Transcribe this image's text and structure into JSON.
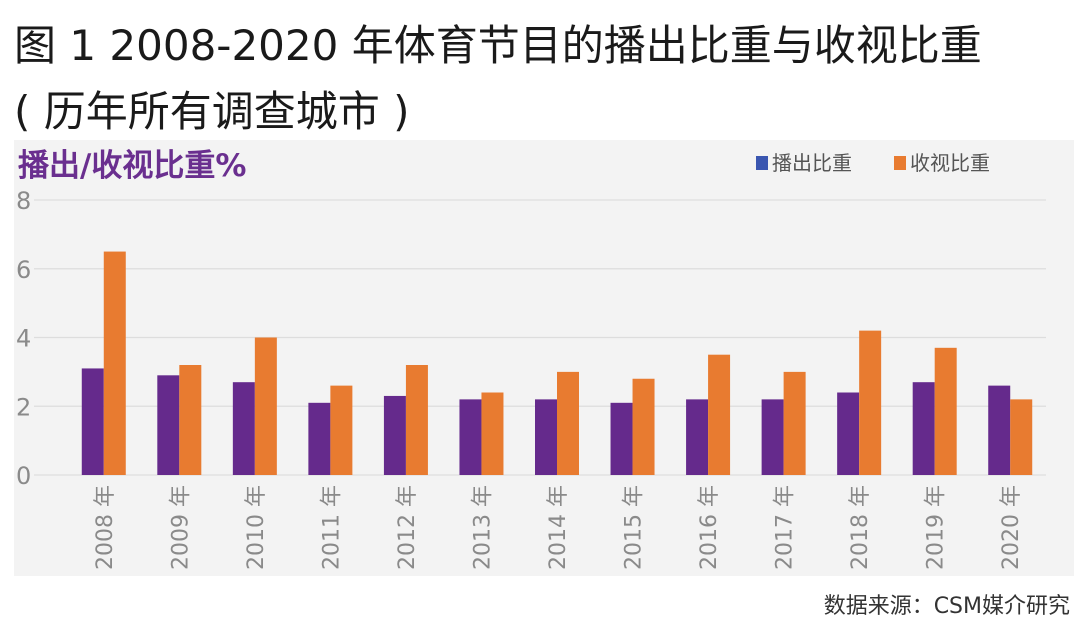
{
  "header": {
    "title_line1": "图 1 2008-2020 年体育节目的播出比重与收视比重",
    "title_line2": "( 历年所有调查城市 )"
  },
  "source": "数据来源：CSM媒介研究",
  "colors": {
    "broadcast": "#652A8C",
    "viewing": "#E87B30",
    "ylabel": "#6A2F8F",
    "panel_bg": "#f3f3f3",
    "grid": "#dddddd",
    "tick": "#8a8a8a"
  },
  "chart_data": {
    "type": "bar",
    "ylabel": "播出/收视比重%",
    "xlabel": "",
    "ylim": [
      0,
      8
    ],
    "yticks": [
      0,
      2,
      4,
      6,
      8
    ],
    "grid": true,
    "legend_position": "top-right",
    "categories": [
      "2008 年",
      "2009 年",
      "2010 年",
      "2011 年",
      "2012 年",
      "2013 年",
      "2014 年",
      "2015 年",
      "2016 年",
      "2017 年",
      "2018 年",
      "2019 年",
      "2020 年"
    ],
    "series": [
      {
        "name": "播出比重",
        "values": [
          3.1,
          2.9,
          2.7,
          2.1,
          2.3,
          2.2,
          2.2,
          2.1,
          2.2,
          2.2,
          2.4,
          2.7,
          2.6
        ]
      },
      {
        "name": "收视比重",
        "values": [
          6.5,
          3.2,
          4.0,
          2.6,
          3.2,
          2.4,
          3.0,
          2.8,
          3.5,
          3.0,
          4.2,
          3.7,
          2.2
        ]
      }
    ]
  }
}
